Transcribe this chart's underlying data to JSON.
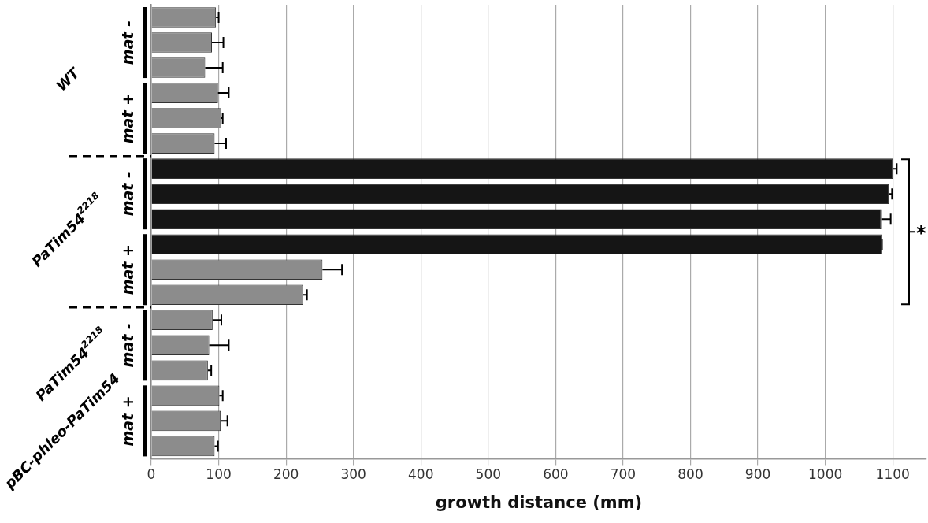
{
  "chart_data": {
    "type": "bar",
    "orientation": "horizontal",
    "xlabel": "growth distance (mm)",
    "categories": [
      null,
      null,
      null,
      null,
      null,
      null,
      null,
      null,
      null,
      null,
      null,
      null,
      null,
      null,
      null,
      null,
      null,
      null
    ],
    "values": [
      96,
      90,
      80,
      99,
      104,
      94,
      1100,
      1094,
      1083,
      1084,
      254,
      225,
      91,
      86,
      84,
      101,
      103,
      94
    ],
    "errors": [
      [
        96,
        100
      ],
      [
        90,
        107
      ],
      [
        80,
        106
      ],
      [
        99,
        115
      ],
      [
        104,
        106
      ],
      [
        94,
        111
      ],
      [
        1100,
        1106
      ],
      [
        1094,
        1099
      ],
      [
        1083,
        1097
      ],
      [
        1084,
        1084
      ],
      [
        254,
        283
      ],
      [
        225,
        231
      ],
      [
        91,
        104
      ],
      [
        86,
        115
      ],
      [
        84,
        89
      ],
      [
        101,
        106
      ],
      [
        103,
        113
      ],
      [
        94,
        99
      ]
    ],
    "colors": [
      "#8c8c8c",
      "#8c8c8c",
      "#8c8c8c",
      "#8c8c8c",
      "#8c8c8c",
      "#8c8c8c",
      "#151515",
      "#151515",
      "#151515",
      "#151515",
      "#8c8c8c",
      "#8c8c8c",
      "#8c8c8c",
      "#8c8c8c",
      "#8c8c8c",
      "#8c8c8c",
      "#8c8c8c",
      "#8c8c8c"
    ],
    "xlim": [
      0,
      1150
    ],
    "xticks": [
      0,
      100,
      200,
      300,
      400,
      500,
      600,
      700,
      800,
      900,
      1000,
      1100
    ],
    "grid": "x",
    "legend": false,
    "annotations": [
      "mat -",
      "mat +",
      "WT",
      "mat -",
      "mat +",
      "PaTim54$^{2218}$",
      "mat -",
      "mat +",
      "PaTim54$^{2218}$",
      "pBC-phleo-PaTim54",
      "*"
    ]
  }
}
